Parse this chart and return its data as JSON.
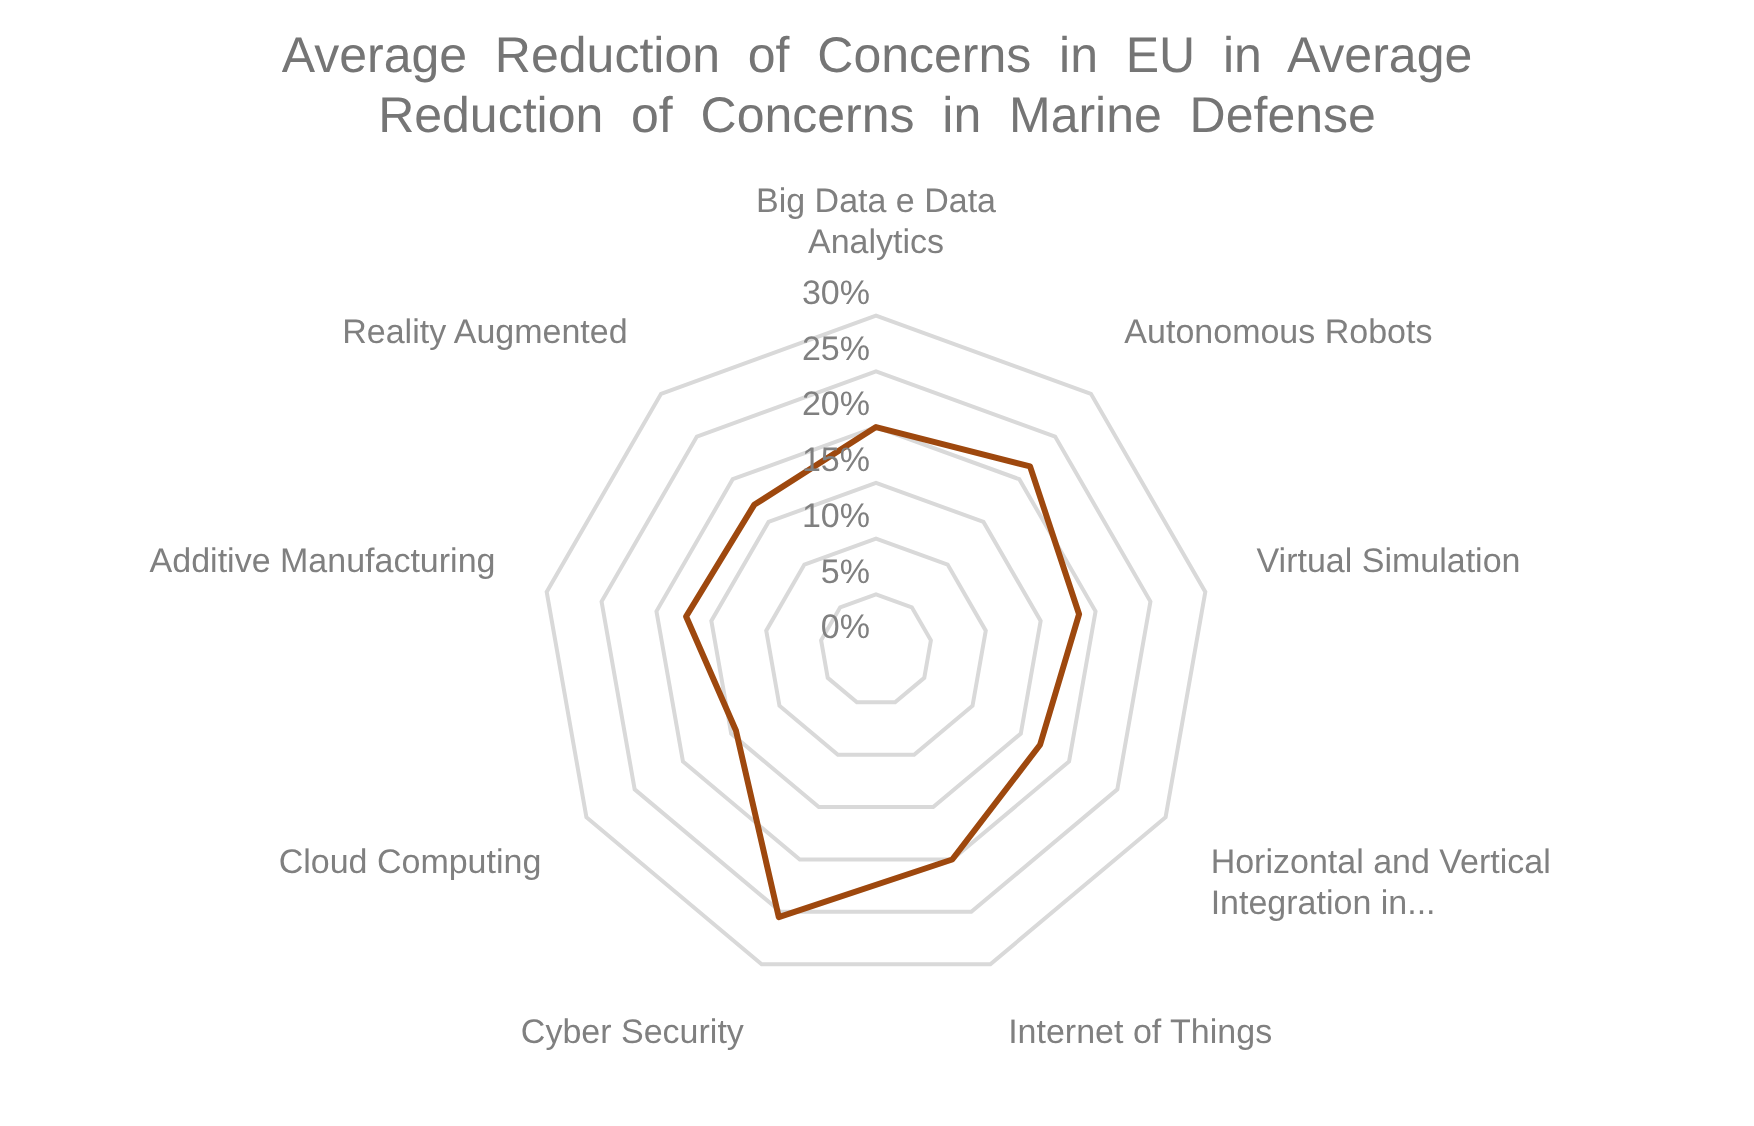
{
  "chart_data": {
    "type": "radar",
    "title": "Average  Reduction  of  Concerns  in  EU  in  Average  Reduction  of  Concerns  in  Marine  Defense",
    "categories": [
      "Big Data e Data Analytics",
      "Autonomous Robots",
      "Virtual Simulation",
      "Horizontal and Vertical Integration in...",
      "Internet of Things",
      "Cyber Security",
      "Cloud Computing",
      "Additive Manufacturing",
      "Reality Augmented"
    ],
    "series": [
      {
        "color": "#9e480e",
        "values": [
          20,
          21.5,
          18.5,
          17,
          20,
          25.5,
          14.5,
          17.3,
          17
        ]
      }
    ],
    "ylim": [
      0,
      30
    ],
    "yticks": [
      {
        "value": 0,
        "label": "0%"
      },
      {
        "value": 5,
        "label": "5%"
      },
      {
        "value": 10,
        "label": "10%"
      },
      {
        "value": 15,
        "label": "15%"
      },
      {
        "value": 20,
        "label": "20%"
      },
      {
        "value": 25,
        "label": "25%"
      },
      {
        "value": 30,
        "label": "30%"
      }
    ],
    "grid": true,
    "legend": false,
    "marker": "none"
  }
}
